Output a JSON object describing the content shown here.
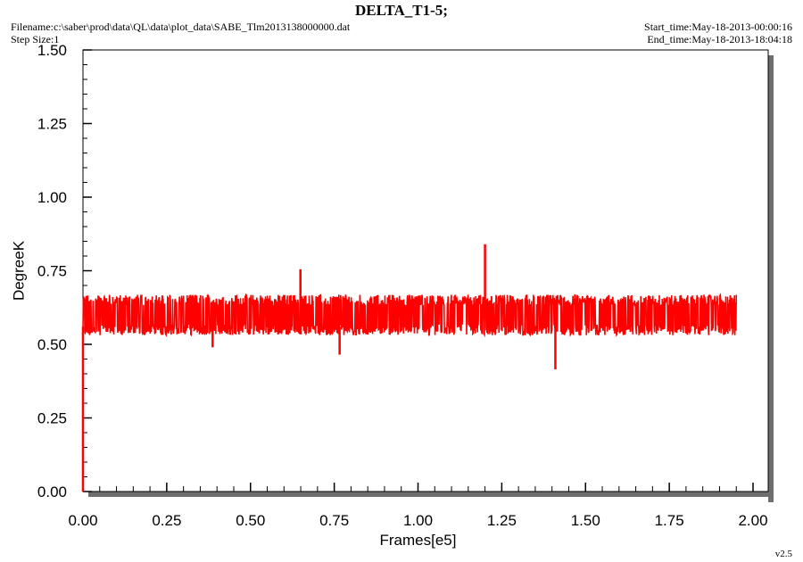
{
  "header": {
    "title": "DELTA_T1-5;",
    "filename": "Filename:c:\\saber\\prod\\data\\QL\\data\\plot_data\\SABE_Tlm2013138000000.dat",
    "step_size": "Step Size:1",
    "start_time": "Start_time:May-18-2013-00:00:16",
    "end_time": "End_time:May-18-2013-18:04:18"
  },
  "footer": {
    "version": "v2.5"
  },
  "colors": {
    "series": "#ff0000",
    "frame_shadow": "#6e6e6e",
    "background": "#ffffff"
  },
  "chart_data": {
    "type": "line",
    "title": "DELTA_T1-5;",
    "xlabel": "Frames[e5]",
    "ylabel": "DegreeK",
    "xlim": [
      0.0,
      2.0
    ],
    "ylim": [
      0.0,
      1.5
    ],
    "xticks": [
      "0.00",
      "0.25",
      "0.50",
      "0.75",
      "1.00",
      "1.25",
      "1.50",
      "1.75",
      "2.00"
    ],
    "yticks": [
      "0.00",
      "0.25",
      "0.50",
      "0.75",
      "1.00",
      "1.25",
      "1.50"
    ],
    "grid": false,
    "series": [
      {
        "color": "#ff0000",
        "band": {
          "x_start": 0.0,
          "x_end": 1.95,
          "typical_low": 0.54,
          "typical_high": 0.66
        },
        "spikes": [
          {
            "x": 0.0,
            "y": 0.0
          },
          {
            "x": 0.387,
            "y": 0.49
          },
          {
            "x": 0.649,
            "y": 0.755
          },
          {
            "x": 0.766,
            "y": 0.465
          },
          {
            "x": 1.2,
            "y": 0.84
          },
          {
            "x": 1.41,
            "y": 0.415
          }
        ]
      }
    ]
  }
}
